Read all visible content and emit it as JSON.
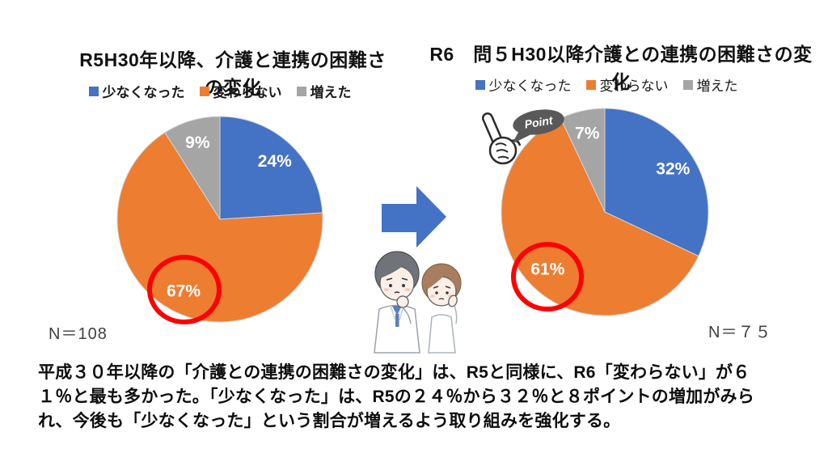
{
  "chart_data": [
    {
      "type": "pie",
      "title": "R5H30年以降、介護と連携の困難さの変化",
      "categories": [
        "少なくなった",
        "変わらない",
        "増えた"
      ],
      "values": [
        24,
        67,
        9
      ],
      "labels": [
        "24%",
        "67%",
        "9%"
      ],
      "colors": [
        "#4472C4",
        "#ED7D31",
        "#A5A5A5"
      ],
      "n_label": "N＝108",
      "legend_position": "top",
      "highlighted_slice": "変わらない 67%"
    },
    {
      "type": "pie",
      "title": "R6　問５H30以降介護との連携の困難さの変化",
      "categories": [
        "少なくなった",
        "変わらない",
        "増えた"
      ],
      "values": [
        32,
        61,
        7
      ],
      "labels": [
        "32%",
        "61%",
        "7%"
      ],
      "colors": [
        "#4472C4",
        "#ED7D31",
        "#A5A5A5"
      ],
      "n_label": "N＝７５",
      "legend_position": "top",
      "highlighted_slice": "変わらない 61%"
    }
  ],
  "middle": {
    "arrow_color": "#4472C4",
    "point_label": "Point",
    "highlight_color": "#FF0000"
  },
  "summary": {
    "text": "平成３０年以降の「介護との連携の困難さの変化」は、R5と同様に、R6「変わらない」が６\n１％と最も多かった。「少なくなった」は、R5の２４％から３２％と８ポイントの増加がみら\nれ、今後も「少なくなった」という割合が増えるよう取り組みを強化する。"
  }
}
